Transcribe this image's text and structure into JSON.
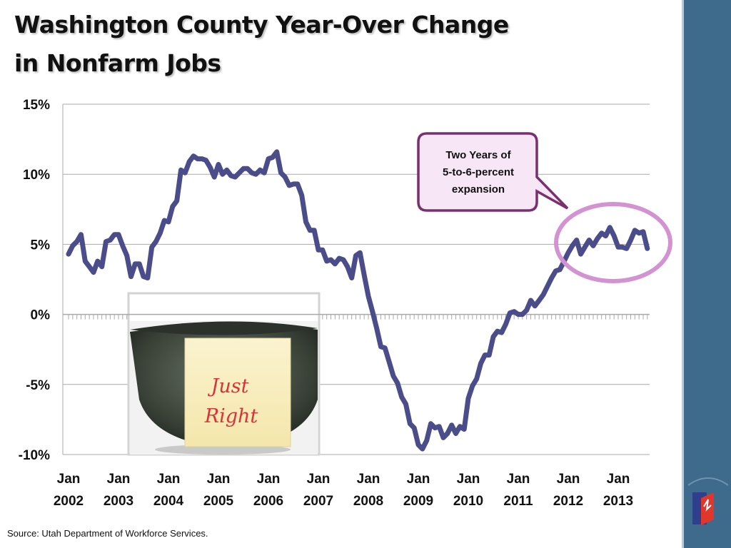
{
  "slide": {
    "title_line1": "Washington County Year-Over Change",
    "title_line2": "in Nonfarm Jobs",
    "source": "Source: Utah Department of Workforce Services.",
    "accent_color": "#3e6b8c"
  },
  "photo": {
    "note_line1": "Just",
    "note_line2": "Right"
  },
  "callout": {
    "lines": [
      "Two Years of",
      "5-to-6-percent",
      "expansion"
    ],
    "border_color": "#7a2f6e",
    "fill_color": "#f6e6f6",
    "highlight_color": "#d393d3"
  },
  "chart_data": {
    "type": "line",
    "title": "Washington County Year-Over Change in Nonfarm Jobs",
    "xlabel": "",
    "ylabel": "",
    "ylim": [
      -10,
      15
    ],
    "yticks": [
      15,
      10,
      5,
      0,
      -5,
      -10
    ],
    "ytick_labels": [
      "15%",
      "10%",
      "5%",
      "0%",
      "-5%",
      "-10%"
    ],
    "xtick_labels": [
      [
        "Jan",
        "2002"
      ],
      [
        "Jan",
        "2003"
      ],
      [
        "Jan",
        "2004"
      ],
      [
        "Jan",
        "2005"
      ],
      [
        "Jan",
        "2006"
      ],
      [
        "Jan",
        "2007"
      ],
      [
        "Jan",
        "2008"
      ],
      [
        "Jan",
        "2009"
      ],
      [
        "Jan",
        "2010"
      ],
      [
        "Jan",
        "2011"
      ],
      [
        "Jan",
        "2012"
      ],
      [
        "Jan",
        "2013"
      ]
    ],
    "grid": true,
    "line_color": "#4b4d8a",
    "series": [
      {
        "x_start": "2002-01",
        "x_step": "month",
        "values": [
          4.3,
          4.9,
          5.2,
          5.7,
          3.8,
          3.4,
          3.0,
          3.8,
          3.4,
          5.2,
          5.3,
          5.7,
          5.7,
          4.9,
          4.2,
          2.7,
          3.6,
          3.6,
          2.7,
          2.6,
          4.8,
          5.2,
          5.8,
          6.7,
          6.6,
          7.7,
          8.1,
          10.3,
          10.1,
          10.9,
          11.3,
          11.1,
          11.1,
          11.0,
          10.5,
          9.8,
          10.7,
          10.0,
          10.3,
          9.9,
          9.8,
          10.1,
          10.4,
          10.4,
          10.1,
          10.0,
          10.3,
          10.1,
          11.1,
          11.2,
          11.6,
          10.1,
          9.8,
          9.2,
          9.3,
          9.3,
          8.5,
          6.6,
          6.0,
          6.0,
          4.6,
          4.6,
          3.8,
          3.9,
          3.6,
          4.0,
          3.9,
          3.4,
          2.6,
          4.2,
          4.4,
          2.8,
          1.3,
          0.2,
          -1.0,
          -2.3,
          -2.4,
          -3.4,
          -4.4,
          -4.9,
          -5.9,
          -6.4,
          -7.8,
          -8.1,
          -9.3,
          -9.6,
          -9.0,
          -7.8,
          -8.1,
          -8.0,
          -8.8,
          -8.5,
          -7.9,
          -8.5,
          -8.0,
          -8.2,
          -6.0,
          -5.1,
          -4.6,
          -3.5,
          -2.9,
          -2.9,
          -1.6,
          -1.2,
          -1.3,
          -0.7,
          0.1,
          0.2,
          0.0,
          0.0,
          0.3,
          1.0,
          0.6,
          1.0,
          1.4,
          2.0,
          2.6,
          3.1,
          3.2,
          3.8,
          4.4,
          4.9,
          5.3,
          4.3,
          4.8,
          5.3,
          4.9,
          5.4,
          5.8,
          5.6,
          6.2,
          5.6,
          4.8,
          4.8,
          4.7,
          5.3,
          6.0,
          5.8,
          5.9,
          4.7
        ]
      }
    ]
  }
}
